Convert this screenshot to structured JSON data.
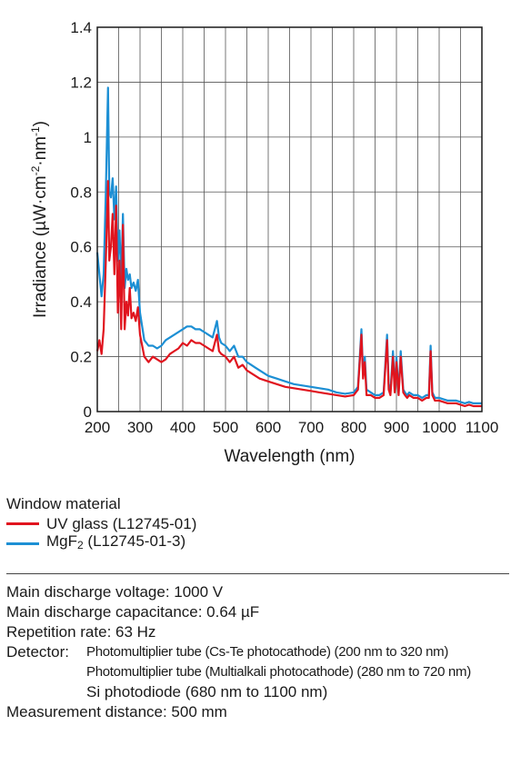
{
  "chart_data": {
    "type": "line",
    "xlabel": "Wavelength (nm)",
    "ylabel_main": "Irradiance (µW·cm",
    "ylabel_sup1": "-2",
    "ylabel_mid": "·nm",
    "ylabel_sup2": "-1",
    "ylabel_end": ")",
    "xlim": [
      200,
      1100
    ],
    "ylim": [
      0,
      1.4
    ],
    "x_ticks": [
      200,
      300,
      400,
      500,
      600,
      700,
      800,
      900,
      1000,
      1100
    ],
    "x_tick_labels": [
      "200",
      "300",
      "400",
      "500",
      "600",
      "700",
      "800",
      "900",
      "1000",
      "1100"
    ],
    "y_ticks": [
      0,
      0.2,
      0.4,
      0.6,
      0.8,
      1.0,
      1.2,
      1.4
    ],
    "y_tick_labels": [
      "0",
      "0.2",
      "0.4",
      "0.6",
      "0.8",
      "1",
      "1.2",
      "1.4"
    ],
    "grid_x": [
      250,
      350,
      450,
      550,
      650,
      750,
      850,
      950,
      1050
    ],
    "grid_y": [
      0.2,
      0.4,
      0.6,
      0.8,
      1.0,
      1.2
    ],
    "series": [
      {
        "name": "UV glass (L12745-01)",
        "color": "#e0141e",
        "x": [
          200,
          205,
          210,
          215,
          220,
          225,
          228,
          232,
          236,
          240,
          244,
          248,
          252,
          256,
          260,
          264,
          268,
          272,
          276,
          280,
          285,
          290,
          295,
          300,
          310,
          320,
          330,
          340,
          350,
          360,
          370,
          380,
          390,
          400,
          410,
          420,
          430,
          440,
          450,
          460,
          470,
          480,
          485,
          490,
          500,
          510,
          520,
          530,
          540,
          550,
          560,
          570,
          580,
          600,
          620,
          640,
          660,
          680,
          700,
          720,
          740,
          760,
          780,
          800,
          810,
          818,
          822,
          826,
          830,
          840,
          850,
          860,
          870,
          878,
          882,
          886,
          892,
          896,
          900,
          905,
          910,
          916,
          920,
          925,
          930,
          940,
          950,
          960,
          970,
          976,
          980,
          984,
          990,
          1000,
          1010,
          1020,
          1030,
          1040,
          1050,
          1060,
          1070,
          1080,
          1090,
          1100
        ],
        "y": [
          0.22,
          0.26,
          0.21,
          0.3,
          0.55,
          0.84,
          0.55,
          0.6,
          0.72,
          0.5,
          0.75,
          0.36,
          0.55,
          0.3,
          0.68,
          0.3,
          0.4,
          0.35,
          0.45,
          0.34,
          0.36,
          0.33,
          0.38,
          0.28,
          0.2,
          0.18,
          0.2,
          0.19,
          0.18,
          0.19,
          0.21,
          0.22,
          0.23,
          0.25,
          0.24,
          0.26,
          0.25,
          0.25,
          0.24,
          0.23,
          0.22,
          0.28,
          0.22,
          0.21,
          0.2,
          0.18,
          0.2,
          0.16,
          0.17,
          0.15,
          0.14,
          0.13,
          0.12,
          0.11,
          0.1,
          0.09,
          0.085,
          0.08,
          0.075,
          0.07,
          0.065,
          0.06,
          0.055,
          0.06,
          0.08,
          0.28,
          0.12,
          0.18,
          0.06,
          0.06,
          0.05,
          0.05,
          0.06,
          0.26,
          0.08,
          0.06,
          0.2,
          0.07,
          0.18,
          0.06,
          0.2,
          0.07,
          0.06,
          0.05,
          0.06,
          0.05,
          0.05,
          0.04,
          0.05,
          0.05,
          0.22,
          0.06,
          0.04,
          0.04,
          0.035,
          0.03,
          0.03,
          0.03,
          0.025,
          0.02,
          0.025,
          0.02,
          0.02,
          0.02
        ]
      },
      {
        "name": "MgF₂ (L12745-01-3)",
        "color": "#1c8fd4",
        "x": [
          200,
          205,
          210,
          215,
          220,
          225,
          228,
          232,
          236,
          240,
          244,
          248,
          252,
          256,
          260,
          264,
          268,
          272,
          276,
          280,
          285,
          290,
          295,
          300,
          310,
          320,
          330,
          340,
          350,
          360,
          370,
          380,
          390,
          400,
          410,
          420,
          430,
          440,
          450,
          460,
          470,
          480,
          485,
          490,
          500,
          510,
          520,
          530,
          540,
          550,
          560,
          570,
          580,
          600,
          620,
          640,
          660,
          680,
          700,
          720,
          740,
          760,
          780,
          800,
          810,
          818,
          822,
          826,
          830,
          840,
          850,
          860,
          870,
          878,
          882,
          886,
          892,
          896,
          900,
          905,
          910,
          916,
          920,
          925,
          930,
          940,
          950,
          960,
          970,
          976,
          980,
          984,
          990,
          1000,
          1010,
          1020,
          1030,
          1040,
          1050,
          1060,
          1070,
          1080,
          1090,
          1100
        ],
        "y": [
          0.58,
          0.5,
          0.42,
          0.5,
          0.8,
          1.18,
          0.8,
          0.78,
          0.85,
          0.7,
          0.82,
          0.55,
          0.66,
          0.48,
          0.72,
          0.45,
          0.52,
          0.48,
          0.5,
          0.45,
          0.47,
          0.44,
          0.48,
          0.36,
          0.26,
          0.24,
          0.24,
          0.23,
          0.24,
          0.26,
          0.27,
          0.28,
          0.29,
          0.3,
          0.31,
          0.31,
          0.3,
          0.3,
          0.29,
          0.28,
          0.27,
          0.33,
          0.27,
          0.25,
          0.24,
          0.22,
          0.24,
          0.2,
          0.2,
          0.18,
          0.17,
          0.16,
          0.15,
          0.13,
          0.12,
          0.11,
          0.1,
          0.095,
          0.09,
          0.085,
          0.08,
          0.07,
          0.065,
          0.07,
          0.09,
          0.3,
          0.14,
          0.2,
          0.08,
          0.07,
          0.06,
          0.06,
          0.07,
          0.28,
          0.1,
          0.07,
          0.22,
          0.08,
          0.2,
          0.07,
          0.22,
          0.08,
          0.07,
          0.06,
          0.07,
          0.06,
          0.06,
          0.05,
          0.06,
          0.06,
          0.24,
          0.07,
          0.05,
          0.05,
          0.045,
          0.04,
          0.04,
          0.04,
          0.035,
          0.03,
          0.035,
          0.03,
          0.03,
          0.03
        ]
      }
    ]
  },
  "legend": {
    "title": "Window material",
    "items": [
      {
        "label": "UV glass (L12745-01)",
        "color": "#e0141e"
      },
      {
        "label_main": "MgF",
        "label_sub": "2",
        "label_rest": " (L12745-01-3)",
        "color": "#1c8fd4"
      }
    ]
  },
  "conditions": {
    "voltage": "Main discharge voltage: 1000 V",
    "capacitance": "Main discharge capacitance: 0.64 µF",
    "repetition": "Repetition rate: 63 Hz",
    "detector_label": "Detector:",
    "detectors": [
      "Photomultiplier tube (Cs-Te photocathode) (200 nm to 320 nm)",
      "Photomultiplier tube (Multialkali photocathode) (280 nm to 720 nm)",
      "Si photodiode (680 nm to 1100 nm)"
    ],
    "distance": "Measurement distance: 500 mm"
  }
}
